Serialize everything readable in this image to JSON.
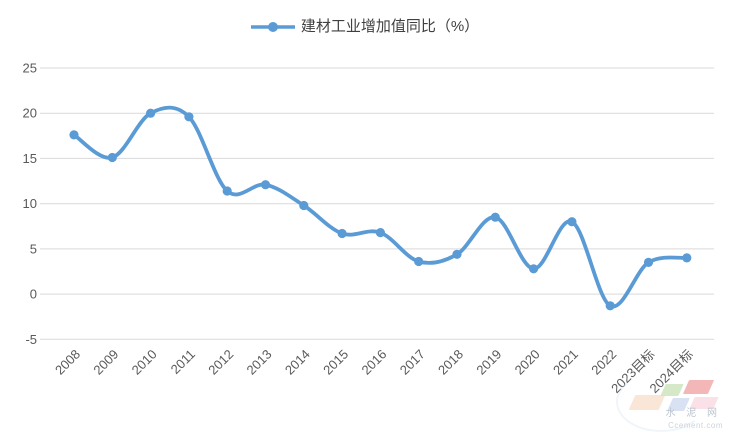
{
  "colors": {
    "line": "#5B9BD5",
    "marker": "#5B9BD5",
    "gridline": "#D9D9D9",
    "axis_text": "#595959",
    "legend_text": "#404040"
  },
  "legend": {
    "label": "建材工业增加值同比（%）",
    "marker": "line-with-circle"
  },
  "watermark": {
    "name": "水 泥 网",
    "domain": "Ccement.com"
  },
  "chart_data": {
    "type": "line",
    "smooth": true,
    "marker_shape": "circle",
    "title": "",
    "legend_position": "top-center",
    "grid": "horizontal",
    "categories": [
      "2008",
      "2009",
      "2010",
      "2011",
      "2012",
      "2013",
      "2014",
      "2015",
      "2016",
      "2017",
      "2018",
      "2019",
      "2020",
      "2021",
      "2022",
      "2023目标",
      "2024目标"
    ],
    "series": [
      {
        "name": "建材工业增加值同比（%）",
        "values": [
          17.6,
          15.1,
          20.0,
          19.6,
          11.4,
          12.1,
          9.8,
          6.7,
          6.8,
          3.6,
          4.4,
          8.5,
          2.8,
          8.0,
          -1.3,
          3.5,
          4.0
        ]
      }
    ],
    "xlabel": "",
    "ylabel": "",
    "ylim": [
      -5,
      25
    ],
    "ytick_interval": 5,
    "yticks": [
      25,
      20,
      15,
      10,
      5,
      0,
      -5
    ]
  }
}
